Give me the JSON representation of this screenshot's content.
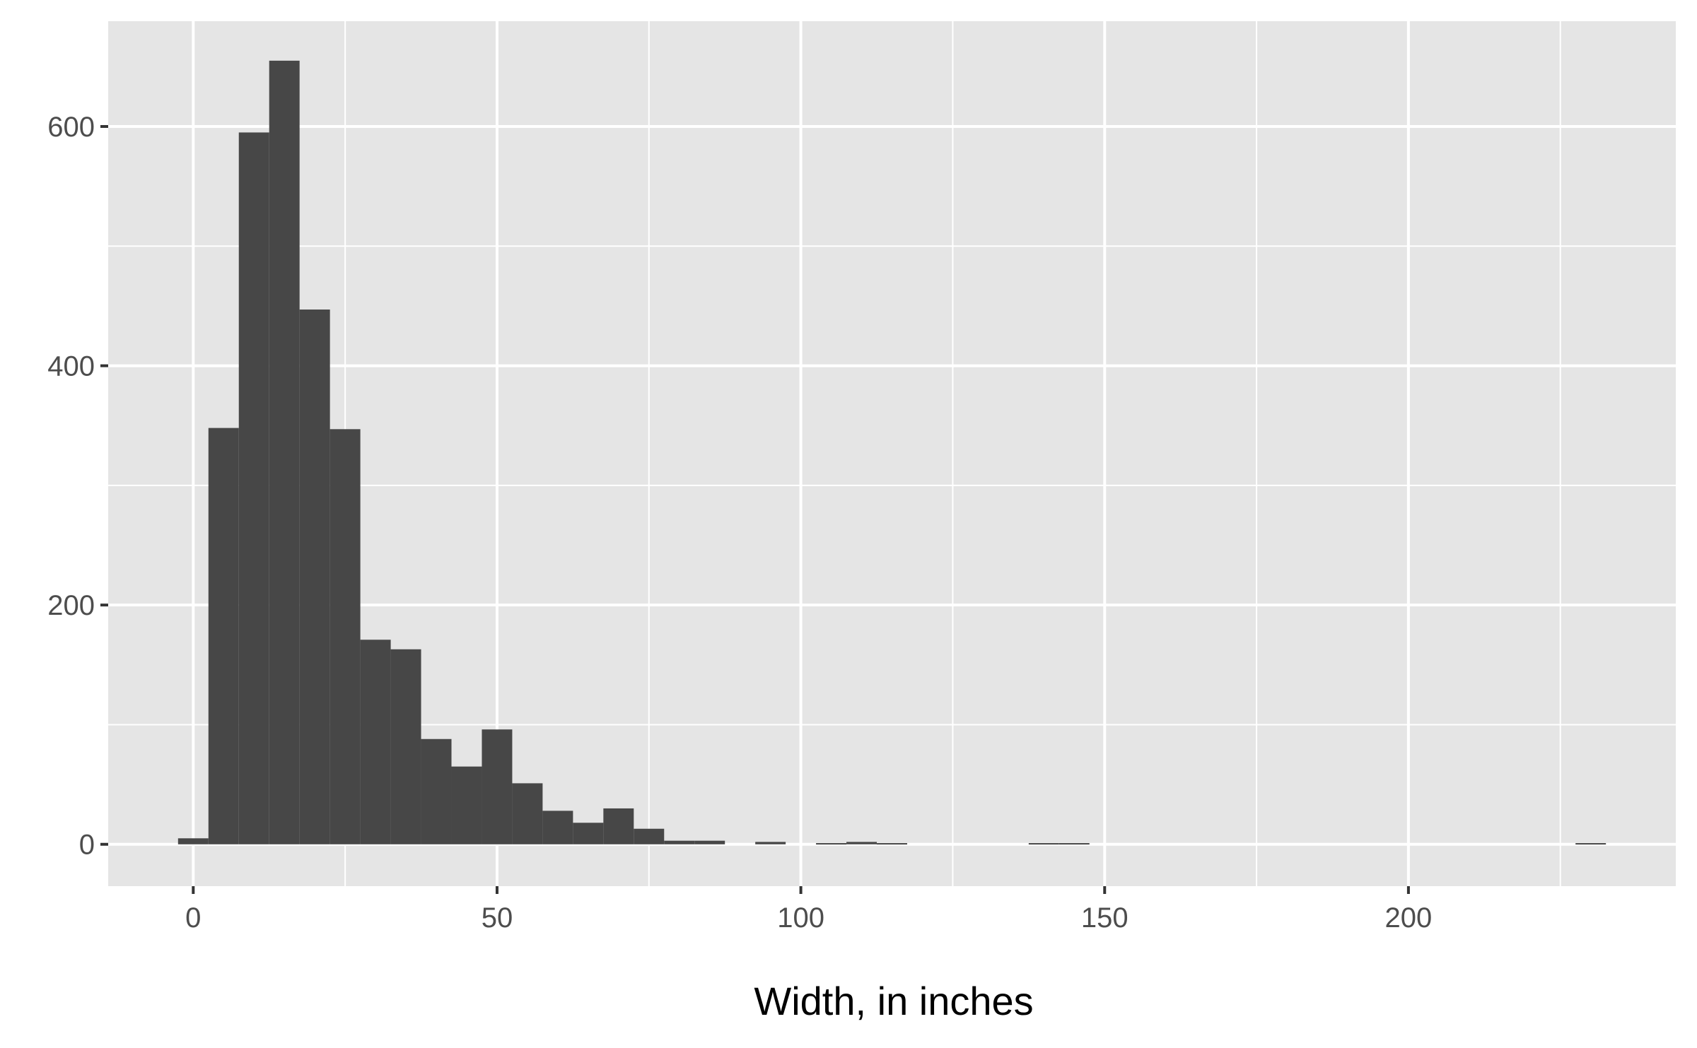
{
  "chart_data": {
    "type": "bar",
    "subtype": "histogram",
    "title": "",
    "xlabel": "Width, in inches",
    "ylabel": "",
    "xlim": [
      -14,
      244
    ],
    "ylim": [
      -35,
      688
    ],
    "binwidth": 5,
    "bins": [
      {
        "x0": -2.5,
        "x1": 2.5,
        "count": 5
      },
      {
        "x0": 2.5,
        "x1": 7.5,
        "count": 348
      },
      {
        "x0": 7.5,
        "x1": 12.5,
        "count": 595
      },
      {
        "x0": 12.5,
        "x1": 17.5,
        "count": 655
      },
      {
        "x0": 17.5,
        "x1": 22.5,
        "count": 447
      },
      {
        "x0": 22.5,
        "x1": 27.5,
        "count": 347
      },
      {
        "x0": 27.5,
        "x1": 32.5,
        "count": 171
      },
      {
        "x0": 32.5,
        "x1": 37.5,
        "count": 163
      },
      {
        "x0": 37.5,
        "x1": 42.5,
        "count": 88
      },
      {
        "x0": 42.5,
        "x1": 47.5,
        "count": 65
      },
      {
        "x0": 47.5,
        "x1": 52.5,
        "count": 96
      },
      {
        "x0": 52.5,
        "x1": 57.5,
        "count": 51
      },
      {
        "x0": 57.5,
        "x1": 62.5,
        "count": 28
      },
      {
        "x0": 62.5,
        "x1": 67.5,
        "count": 18
      },
      {
        "x0": 67.5,
        "x1": 72.5,
        "count": 30
      },
      {
        "x0": 72.5,
        "x1": 77.5,
        "count": 13
      },
      {
        "x0": 77.5,
        "x1": 82.5,
        "count": 3
      },
      {
        "x0": 82.5,
        "x1": 87.5,
        "count": 3
      },
      {
        "x0": 92.5,
        "x1": 97.5,
        "count": 2
      },
      {
        "x0": 102.5,
        "x1": 107.5,
        "count": 1
      },
      {
        "x0": 107.5,
        "x1": 112.5,
        "count": 2
      },
      {
        "x0": 112.5,
        "x1": 117.5,
        "count": 1
      },
      {
        "x0": 137.5,
        "x1": 142.5,
        "count": 1
      },
      {
        "x0": 142.5,
        "x1": 147.5,
        "count": 1
      },
      {
        "x0": 227.5,
        "x1": 232.5,
        "count": 1
      }
    ],
    "x_ticks": [
      0,
      50,
      100,
      150,
      200
    ],
    "x_tick_labels": [
      "0",
      "50",
      "100",
      "150",
      "200"
    ],
    "x_minor_grid": [
      25,
      75,
      125,
      175,
      225
    ],
    "y_ticks": [
      0,
      200,
      400,
      600
    ],
    "y_tick_labels": [
      "0",
      "200",
      "400",
      "600"
    ],
    "y_minor_grid": [
      100,
      300,
      500
    ],
    "grid": true,
    "legend": "none",
    "colors": {
      "panel_background": "#e5e5e5",
      "grid_line": "#ffffff",
      "bar_fill": "#474747",
      "tick_mark": "#333333",
      "tick_label": "#4d4d4d",
      "axis_title": "#000000"
    }
  }
}
